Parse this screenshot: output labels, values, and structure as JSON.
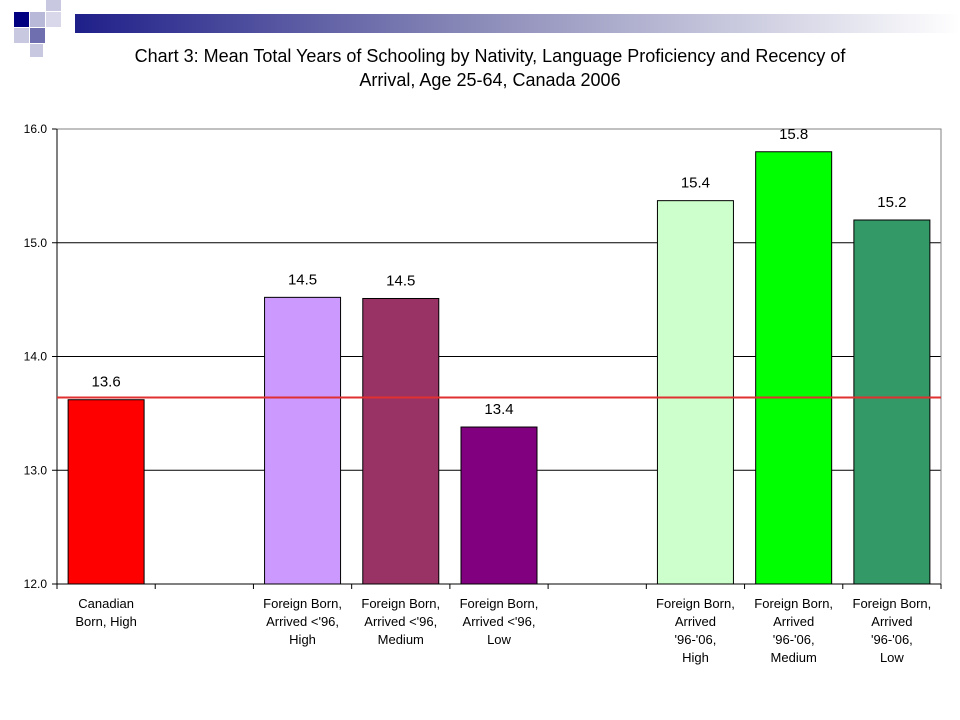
{
  "header": {
    "title_line1": "Chart 3: Mean Total Years of Schooling by Nativity, Language Proficiency and Recency of",
    "title_line2": "Arrival,  Age 25-64, Canada 2006"
  },
  "chart_data": {
    "type": "bar",
    "title": "Chart 3: Mean Total Years of Schooling by Nativity, Language Proficiency and Recency of Arrival,  Age 25-64, Canada 2006",
    "categories": [
      [
        "Canadian",
        "Born, High"
      ],
      [],
      [
        "Foreign Born,",
        "Arrived <'96,",
        "High"
      ],
      [
        "Foreign Born,",
        "Arrived <'96,",
        "Medium"
      ],
      [
        "Foreign Born,",
        "Arrived <'96,",
        "Low"
      ],
      [],
      [
        "Foreign Born,",
        "Arrived",
        "'96-'06,",
        "High"
      ],
      [
        "Foreign Born,",
        "Arrived",
        "'96-'06,",
        "Medium"
      ],
      [
        "Foreign Born,",
        "Arrived",
        "'96-'06,",
        "Low"
      ]
    ],
    "values": [
      13.62,
      null,
      14.52,
      14.51,
      13.38,
      null,
      15.37,
      15.8,
      15.2
    ],
    "labels": [
      "13.6",
      "",
      "14.5",
      "14.5",
      "13.4",
      "",
      "15.4",
      "15.8",
      "15.2"
    ],
    "colors": [
      "#ff0000",
      null,
      "#cc99ff",
      "#993366",
      "#800080",
      null,
      "#ccffcc",
      "#00ff00",
      "#339966"
    ],
    "reference_line": {
      "value": 13.64,
      "color": "#e03030"
    },
    "ylim": [
      12.0,
      16.0
    ],
    "yticks": [
      "12.0",
      "13.0",
      "14.0",
      "15.0",
      "16.0"
    ],
    "grid": true,
    "xlabel": "",
    "ylabel": ""
  }
}
